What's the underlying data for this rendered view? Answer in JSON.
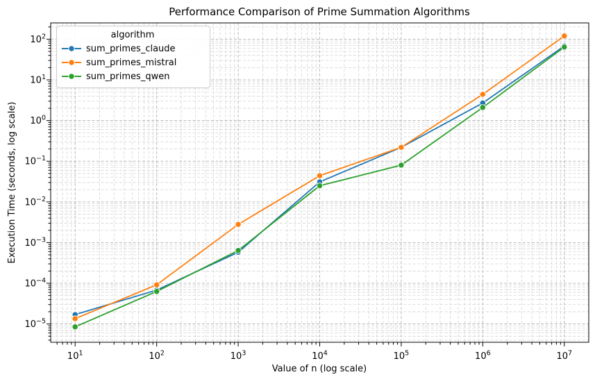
{
  "figure": {
    "background": "#ffffff",
    "spine_color": "#000000",
    "grid_major_color": "#b0b0b0",
    "grid_minor_color": "#cdcdcd",
    "tick_color": "#000000"
  },
  "chart_data": {
    "type": "line",
    "title": "Performance Comparison of Prime Summation Algorithms",
    "xlabel": "Value of n (log scale)",
    "ylabel": "Execution Time (seconds, log scale)",
    "x_scale": "log",
    "y_scale": "log",
    "grid": "both-major-and-minor, dashed",
    "legend": {
      "title": "algorithm",
      "position": "upper left"
    },
    "x": [
      10,
      100,
      1000,
      10000,
      100000,
      1000000,
      10000000
    ],
    "series": [
      {
        "name": "sum_primes_claude",
        "color": "#1f77b4",
        "values": [
          1.7e-05,
          6.8e-05,
          0.00058,
          0.031,
          0.22,
          2.7,
          68
        ]
      },
      {
        "name": "sum_primes_mistral",
        "color": "#ff7f0e",
        "values": [
          1.35e-05,
          9.2e-05,
          0.0028,
          0.044,
          0.22,
          4.4,
          120
        ]
      },
      {
        "name": "sum_primes_qwen",
        "color": "#2ca02c",
        "values": [
          8.5e-06,
          6.3e-05,
          0.00064,
          0.025,
          0.08,
          2.1,
          64
        ]
      }
    ],
    "x_ticks_exp": [
      1,
      2,
      3,
      4,
      5,
      6,
      7
    ],
    "y_ticks_exp": [
      2,
      1,
      0,
      -1,
      -2,
      -3,
      -4,
      -5
    ],
    "xlim_log": [
      0.7,
      7.3
    ],
    "ylim_log": [
      -5.45,
      2.4
    ]
  }
}
